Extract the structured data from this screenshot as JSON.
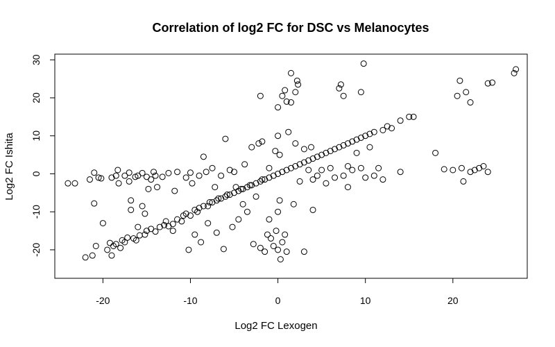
{
  "chart_data": {
    "type": "scatter",
    "title": "Correlation of log2 FC for DSC vs Melanocytes",
    "xlabel": "Log2 FC Lexogen",
    "ylabel": "Log2 FC Ishita",
    "xlim": [
      -25.5,
      28.5
    ],
    "ylim": [
      -27.5,
      31.5
    ],
    "xticks": [
      -20,
      -10,
      0,
      10,
      20
    ],
    "yticks": [
      -20,
      -10,
      0,
      10,
      20,
      30
    ],
    "grid": false,
    "legend": "none",
    "marker": "open-circle",
    "points": [
      [
        -24,
        -2.5
      ],
      [
        -23.2,
        -2.5
      ],
      [
        -22,
        -22
      ],
      [
        -21.5,
        -1.5
      ],
      [
        -21,
        -7.8
      ],
      [
        -21.2,
        -21.5
      ],
      [
        -21,
        0.3
      ],
      [
        -20.8,
        -19
      ],
      [
        -20.5,
        -1
      ],
      [
        -20.2,
        -1.2
      ],
      [
        -20,
        -13
      ],
      [
        -19.5,
        -20
      ],
      [
        -19.2,
        -18.2
      ],
      [
        -19,
        -21.5
      ],
      [
        -19,
        -1
      ],
      [
        -18.8,
        -19
      ],
      [
        -18.5,
        -0.5
      ],
      [
        -18.5,
        -18.5
      ],
      [
        -18.3,
        1
      ],
      [
        -18,
        -19.5
      ],
      [
        -18.2,
        -2.5
      ],
      [
        -17.8,
        -17.5
      ],
      [
        -17.5,
        -0.5
      ],
      [
        -17.5,
        -18
      ],
      [
        -17.2,
        -16.8
      ],
      [
        -17,
        -2
      ],
      [
        -17,
        0.3
      ],
      [
        -16.8,
        -7
      ],
      [
        -16.8,
        -9.5
      ],
      [
        -16.5,
        -17
      ],
      [
        -16.3,
        -0.8
      ],
      [
        -16.2,
        -17.5
      ],
      [
        -16,
        -14
      ],
      [
        -16,
        -0.5
      ],
      [
        -15.8,
        -16.2
      ],
      [
        -15.5,
        -8.5
      ],
      [
        -15.5,
        0.2
      ],
      [
        -15.2,
        -10.5
      ],
      [
        -15.2,
        -16
      ],
      [
        -15,
        -15
      ],
      [
        -15,
        -0.8
      ],
      [
        -14.8,
        -4
      ],
      [
        -14.5,
        -14.5
      ],
      [
        -14.5,
        -1.5
      ],
      [
        -14.2,
        0.5
      ],
      [
        -14,
        -15.2
      ],
      [
        -14,
        -0.5
      ],
      [
        -13.8,
        -3.5
      ],
      [
        -13.5,
        -14
      ],
      [
        -13.2,
        -0.8
      ],
      [
        -13,
        -13.5
      ],
      [
        -12.8,
        -12.5
      ],
      [
        -12.5,
        -13.8
      ],
      [
        -12.5,
        0.2
      ],
      [
        -12,
        -13.2
      ],
      [
        -12,
        -15
      ],
      [
        -11.8,
        -4.5
      ],
      [
        -11.5,
        -12
      ],
      [
        -11.5,
        0.5
      ],
      [
        -11,
        -12.5
      ],
      [
        -10.8,
        -11
      ],
      [
        -10.5,
        -10.5
      ],
      [
        -10.5,
        -1
      ],
      [
        -10.2,
        -20
      ],
      [
        -10,
        -11
      ],
      [
        -10,
        0.3
      ],
      [
        -9.8,
        -2.5
      ],
      [
        -9.5,
        -9.5
      ],
      [
        -9.5,
        -16
      ],
      [
        -9.2,
        -10
      ],
      [
        -9,
        -9
      ],
      [
        -9,
        -0.5
      ],
      [
        -8.8,
        -18
      ],
      [
        -8.5,
        -8.5
      ],
      [
        -8.5,
        4.5
      ],
      [
        -8.2,
        0.5
      ],
      [
        -8,
        -8.5
      ],
      [
        -8,
        -13
      ],
      [
        -7.8,
        -7.5
      ],
      [
        -7.5,
        -7.5
      ],
      [
        -7.5,
        1.5
      ],
      [
        -7.2,
        -3.5
      ],
      [
        -7,
        -7
      ],
      [
        -7,
        -15.5
      ],
      [
        -6.8,
        -6.5
      ],
      [
        -6.5,
        -6.5
      ],
      [
        -6.5,
        -0.5
      ],
      [
        -6.2,
        -19.8
      ],
      [
        -6,
        -6
      ],
      [
        -6,
        9.2
      ],
      [
        -5.8,
        -5.5
      ],
      [
        -5.5,
        -5.5
      ],
      [
        -5.5,
        1
      ],
      [
        -5.2,
        -14
      ],
      [
        -5,
        -5
      ],
      [
        -5,
        0.5
      ],
      [
        -4.8,
        -3.5
      ],
      [
        -4.5,
        -4.5
      ],
      [
        -4.5,
        -12
      ],
      [
        -4.2,
        -4
      ],
      [
        -4,
        -4
      ],
      [
        -4,
        -8
      ],
      [
        -3.8,
        2.5
      ],
      [
        -3.5,
        -3.5
      ],
      [
        -3.5,
        -10
      ],
      [
        -3.2,
        -3
      ],
      [
        -3,
        -3
      ],
      [
        -3,
        7
      ],
      [
        -2.8,
        -18.5
      ],
      [
        -2.5,
        -2.5
      ],
      [
        -2.5,
        -6
      ],
      [
        -2.2,
        8
      ],
      [
        -2,
        -2
      ],
      [
        -2,
        20.5
      ],
      [
        -2,
        -19.5
      ],
      [
        -1.8,
        -1.5
      ],
      [
        -1.8,
        8.5
      ],
      [
        -1.5,
        -1.5
      ],
      [
        -1.5,
        -20.5
      ],
      [
        -1.2,
        -16
      ],
      [
        -1,
        -1
      ],
      [
        -1,
        -12
      ],
      [
        -1,
        1.5
      ],
      [
        -0.8,
        -17
      ],
      [
        -0.5,
        -0.5
      ],
      [
        -0.5,
        -19
      ],
      [
        -0.3,
        6
      ],
      [
        -0.2,
        -15
      ],
      [
        0,
        0
      ],
      [
        0,
        -10
      ],
      [
        0,
        10
      ],
      [
        0,
        -20
      ],
      [
        0,
        17.5
      ],
      [
        0.2,
        -7
      ],
      [
        0.2,
        5
      ],
      [
        0.3,
        -22.5
      ],
      [
        0.5,
        0.5
      ],
      [
        0.5,
        20.5
      ],
      [
        0.5,
        -18
      ],
      [
        0.8,
        22
      ],
      [
        0.8,
        -16
      ],
      [
        1,
        1
      ],
      [
        1,
        19
      ],
      [
        1,
        -20.5
      ],
      [
        1.2,
        11
      ],
      [
        1.5,
        1.5
      ],
      [
        1.5,
        26.5
      ],
      [
        1.5,
        18.8
      ],
      [
        1.8,
        -8
      ],
      [
        2,
        2
      ],
      [
        2,
        21.5
      ],
      [
        2,
        8
      ],
      [
        2.2,
        24.5
      ],
      [
        2.3,
        23.5
      ],
      [
        2.5,
        2.5
      ],
      [
        2.5,
        -2
      ],
      [
        3,
        3
      ],
      [
        3,
        6.5
      ],
      [
        3,
        -20.5
      ],
      [
        3.5,
        3.5
      ],
      [
        3.5,
        1
      ],
      [
        3.8,
        7
      ],
      [
        4,
        4
      ],
      [
        4,
        -1.5
      ],
      [
        4,
        -9.5
      ],
      [
        4.5,
        4.5
      ],
      [
        4.5,
        -0.5
      ],
      [
        5,
        5
      ],
      [
        5,
        1
      ],
      [
        5.5,
        5.5
      ],
      [
        5.5,
        -2.5
      ],
      [
        6,
        6
      ],
      [
        6,
        1.5
      ],
      [
        6.5,
        6.5
      ],
      [
        6.5,
        -1
      ],
      [
        7,
        7
      ],
      [
        7,
        22.5
      ],
      [
        7.2,
        23.5
      ],
      [
        7.5,
        20.5
      ],
      [
        7.5,
        7.5
      ],
      [
        7.5,
        -0.5
      ],
      [
        8,
        8
      ],
      [
        8,
        2
      ],
      [
        8,
        -3.5
      ],
      [
        8.5,
        8.5
      ],
      [
        8.5,
        1
      ],
      [
        9,
        9
      ],
      [
        9,
        5.5
      ],
      [
        9.5,
        9.5
      ],
      [
        9.5,
        21.5
      ],
      [
        9.5,
        1.5
      ],
      [
        9.8,
        29
      ],
      [
        10,
        10
      ],
      [
        10,
        -1
      ],
      [
        10.5,
        10.5
      ],
      [
        10.5,
        7
      ],
      [
        11,
        11
      ],
      [
        11,
        -0.5
      ],
      [
        11.5,
        1.5
      ],
      [
        12,
        11.5
      ],
      [
        12,
        -1.5
      ],
      [
        12.5,
        12.5
      ],
      [
        13,
        12
      ],
      [
        14,
        14
      ],
      [
        14,
        0.5
      ],
      [
        15,
        15
      ],
      [
        15.5,
        15
      ],
      [
        18,
        5.5
      ],
      [
        19,
        1.2
      ],
      [
        20,
        1
      ],
      [
        20.5,
        20.5
      ],
      [
        20.8,
        24.5
      ],
      [
        21,
        1.5
      ],
      [
        21.2,
        -2
      ],
      [
        21.5,
        21.5
      ],
      [
        22,
        18.8
      ],
      [
        22,
        0.5
      ],
      [
        22.5,
        1
      ],
      [
        23,
        1.5
      ],
      [
        23.5,
        2
      ],
      [
        24,
        23.8
      ],
      [
        24.5,
        24
      ],
      [
        24,
        0.5
      ],
      [
        27,
        26.5
      ],
      [
        27.2,
        27.5
      ]
    ]
  }
}
